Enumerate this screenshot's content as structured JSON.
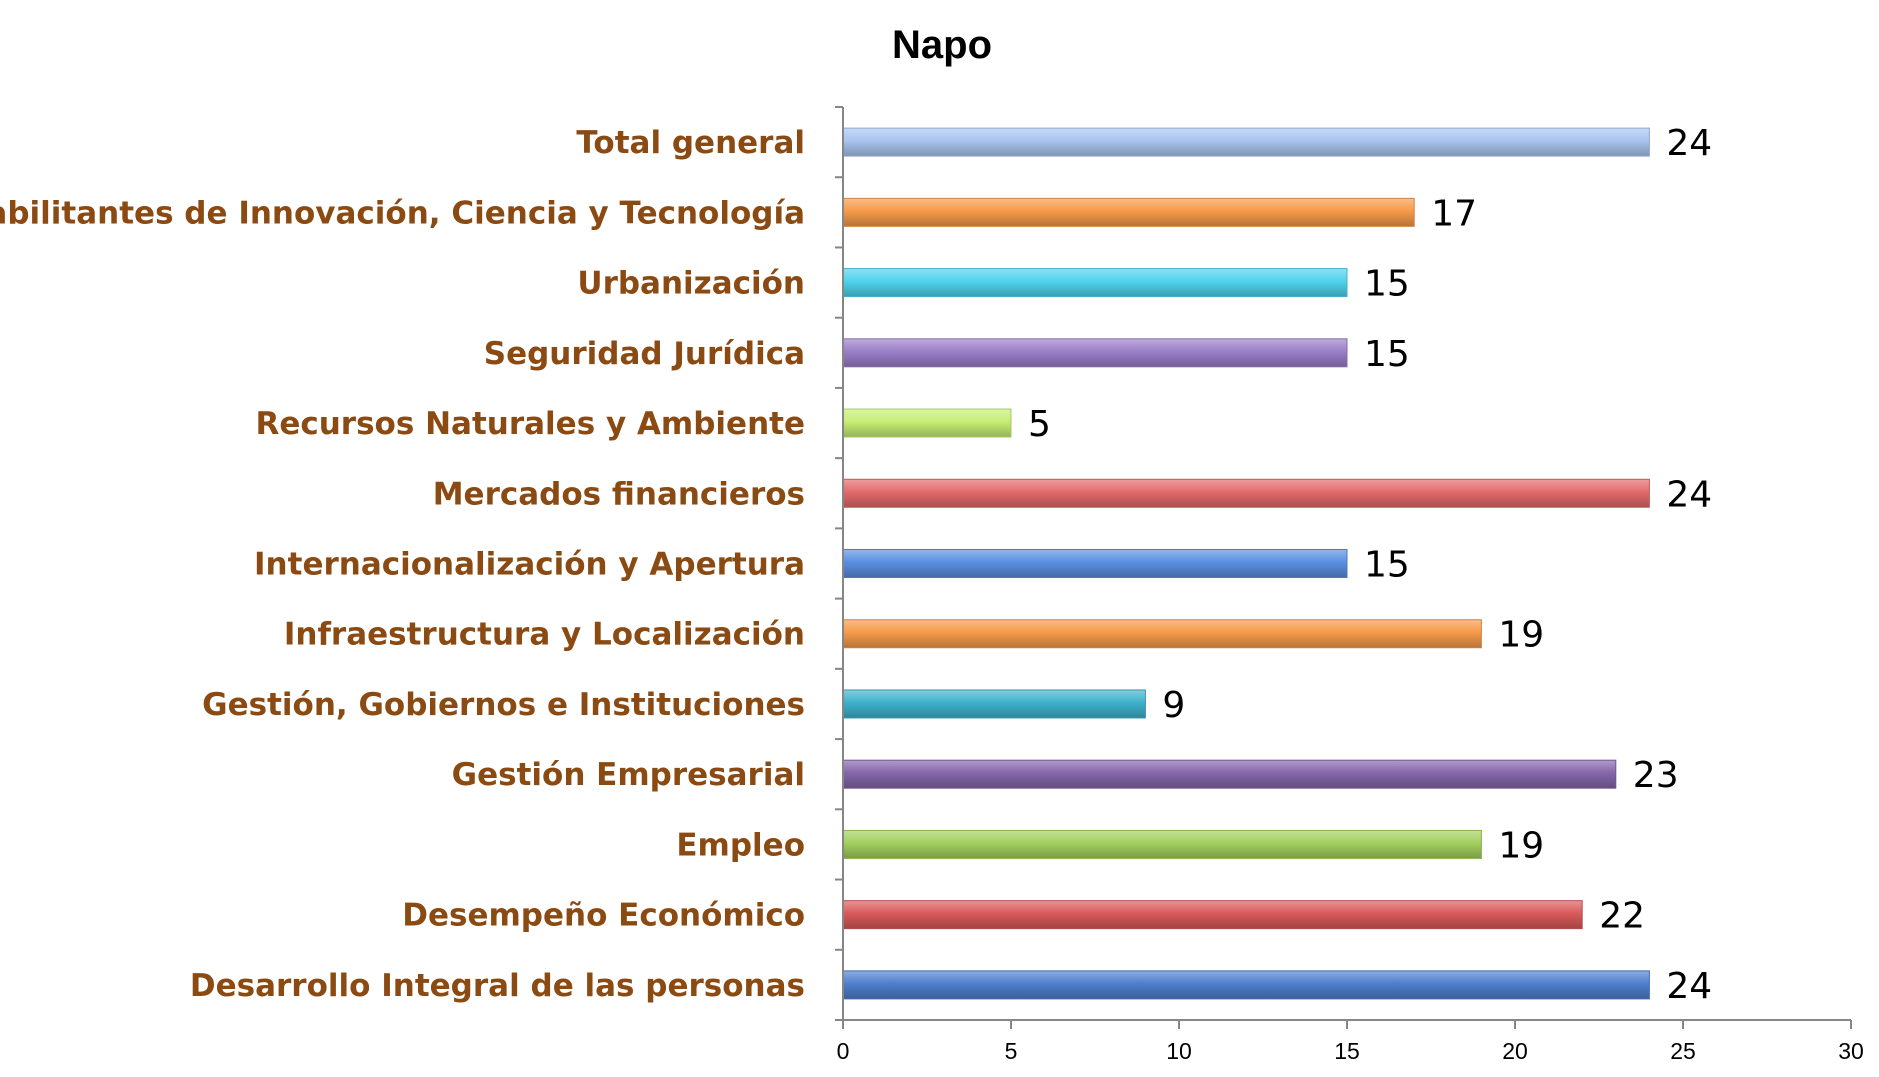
{
  "chart_data": {
    "type": "bar",
    "orientation": "horizontal",
    "title": "Napo",
    "xlabel": "",
    "ylabel": "",
    "xlim": [
      0,
      30
    ],
    "x_ticks": [
      0,
      5,
      10,
      15,
      20,
      25,
      30
    ],
    "x_tick_labels": [
      "0",
      "5",
      "10",
      "15",
      "20",
      "25",
      "30"
    ],
    "grid": false,
    "legend": "none",
    "categories": [
      "Total general",
      "Habilitantes de Innovación, Ciencia y Tecnología",
      "Urbanización",
      "Seguridad Jurídica",
      "Recursos Naturales y Ambiente",
      "Mercados financieros",
      "Internacionalización y Apertura",
      "Infraestructura y Localización",
      "Gestión, Gobiernos e Instituciones",
      "Gestión Empresarial",
      "Empleo",
      "Desempeño Económico",
      "Desarrollo Integral de las personas"
    ],
    "values": [
      24,
      17,
      15,
      15,
      5,
      24,
      15,
      19,
      9,
      23,
      19,
      22,
      24
    ],
    "value_labels": [
      "24",
      "17",
      "15",
      "15",
      "5",
      "24",
      "15",
      "19",
      "9",
      "23",
      "19",
      "22",
      "24"
    ],
    "bar_colors": [
      "#a9c4f0",
      "#f59a4a",
      "#4fd3ec",
      "#9a7fc8",
      "#c6ee74",
      "#e36a6a",
      "#5a8fe0",
      "#f59a4a",
      "#3eb1cc",
      "#8566aa",
      "#a2cf5d",
      "#d95a5a",
      "#4f7fcc"
    ],
    "label_color": "#8a4a12",
    "axis_color": "#868686"
  }
}
